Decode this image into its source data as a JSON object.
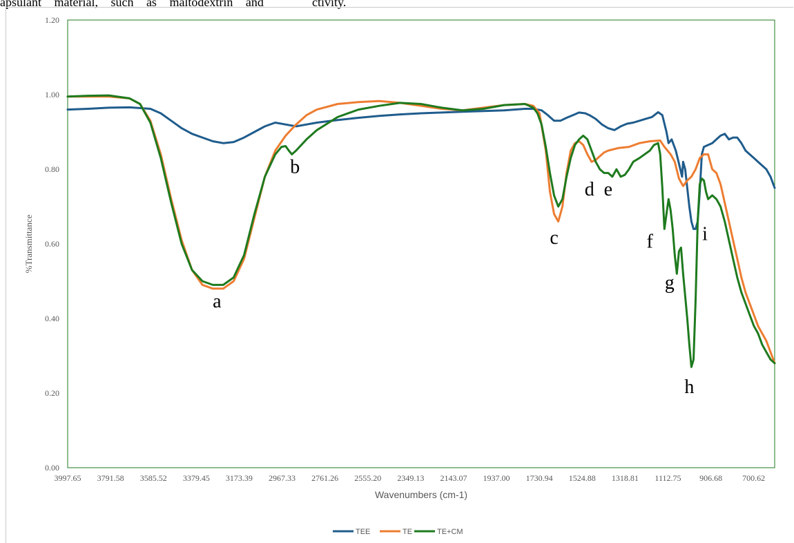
{
  "header_text": {
    "left": "apsulant material, such as maltodextrin and",
    "right": "ctivity."
  },
  "chart_data": {
    "type": "line",
    "title": "",
    "xlabel": "Wavenumbers (cm-1)",
    "ylabel": "%Transmittance",
    "x_reversed": true,
    "xlim": [
      3997.65,
      600.0
    ],
    "ylim": [
      0.0,
      1.2
    ],
    "y_ticks": [
      "0.00",
      "0.20",
      "0.40",
      "0.60",
      "0.80",
      "1.00",
      "1.20"
    ],
    "x_ticks": [
      {
        "value": 3997.65,
        "label": "3997.65"
      },
      {
        "value": 3791.58,
        "label": "3791.58"
      },
      {
        "value": 3585.52,
        "label": "3585.52"
      },
      {
        "value": 3379.45,
        "label": "3379.45"
      },
      {
        "value": 3173.39,
        "label": "3173.39"
      },
      {
        "value": 2967.33,
        "label": "2967.33"
      },
      {
        "value": 2761.26,
        "label": "2761.26"
      },
      {
        "value": 2555.2,
        "label": "2555.20"
      },
      {
        "value": 2349.13,
        "label": "2349.13"
      },
      {
        "value": 2143.07,
        "label": "2143.07"
      },
      {
        "value": 1937.0,
        "label": "1937.00"
      },
      {
        "value": 1730.94,
        "label": "1730.94"
      },
      {
        "value": 1524.88,
        "label": "1524.88"
      },
      {
        "value": 1318.81,
        "label": "1318.81"
      },
      {
        "value": 1112.75,
        "label": "1112.75"
      },
      {
        "value": 906.68,
        "label": "906.68"
      },
      {
        "value": 700.62,
        "label": "700.62"
      }
    ],
    "grid": false,
    "legend_position": "bottom",
    "series": [
      {
        "name": "TEE",
        "color": "#1f5c8c",
        "x": [
          3997.65,
          3900,
          3800,
          3700,
          3600,
          3550,
          3500,
          3450,
          3400,
          3350,
          3300,
          3250,
          3200,
          3150,
          3100,
          3050,
          3000,
          2950,
          2900,
          2850,
          2800,
          2700,
          2600,
          2500,
          2400,
          2300,
          2200,
          2100,
          2000,
          1900,
          1800,
          1760,
          1720,
          1690,
          1660,
          1630,
          1600,
          1570,
          1540,
          1510,
          1490,
          1460,
          1430,
          1400,
          1370,
          1340,
          1310,
          1280,
          1250,
          1220,
          1190,
          1160,
          1140,
          1120,
          1110,
          1095,
          1085,
          1075,
          1060,
          1045,
          1040,
          1030,
          1020,
          1010,
          1000,
          990,
          980,
          970,
          960,
          950,
          940,
          920,
          900,
          880,
          860,
          840,
          820,
          800,
          780,
          760,
          740,
          720,
          700,
          680,
          660,
          640,
          620,
          600
        ],
        "y": [
          0.96,
          0.962,
          0.965,
          0.966,
          0.962,
          0.95,
          0.93,
          0.91,
          0.895,
          0.885,
          0.875,
          0.87,
          0.873,
          0.885,
          0.9,
          0.915,
          0.925,
          0.92,
          0.915,
          0.92,
          0.925,
          0.932,
          0.938,
          0.943,
          0.947,
          0.95,
          0.952,
          0.954,
          0.956,
          0.958,
          0.962,
          0.962,
          0.958,
          0.945,
          0.93,
          0.93,
          0.938,
          0.945,
          0.952,
          0.95,
          0.945,
          0.935,
          0.92,
          0.91,
          0.905,
          0.915,
          0.922,
          0.925,
          0.93,
          0.935,
          0.94,
          0.953,
          0.945,
          0.9,
          0.87,
          0.88,
          0.865,
          0.85,
          0.815,
          0.78,
          0.82,
          0.8,
          0.75,
          0.7,
          0.66,
          0.64,
          0.64,
          0.66,
          0.74,
          0.84,
          0.86,
          0.865,
          0.87,
          0.88,
          0.89,
          0.895,
          0.88,
          0.885,
          0.885,
          0.87,
          0.85,
          0.84,
          0.83,
          0.82,
          0.81,
          0.8,
          0.78,
          0.75
        ]
      },
      {
        "name": "TE",
        "color": "#ed7d31",
        "x": [
          3997.65,
          3900,
          3800,
          3700,
          3650,
          3600,
          3550,
          3500,
          3450,
          3400,
          3350,
          3300,
          3250,
          3200,
          3150,
          3100,
          3050,
          3000,
          2950,
          2900,
          2850,
          2800,
          2700,
          2600,
          2500,
          2400,
          2300,
          2200,
          2100,
          2000,
          1900,
          1800,
          1760,
          1730,
          1700,
          1680,
          1660,
          1640,
          1620,
          1600,
          1580,
          1560,
          1540,
          1520,
          1500,
          1480,
          1460,
          1440,
          1420,
          1400,
          1350,
          1300,
          1250,
          1200,
          1150,
          1130,
          1100,
          1080,
          1060,
          1040,
          1020,
          1000,
          980,
          960,
          940,
          920,
          900,
          880,
          860,
          840,
          820,
          800,
          780,
          760,
          740,
          720,
          700,
          680,
          660,
          640,
          620,
          600
        ],
        "y": [
          0.995,
          0.995,
          0.995,
          0.99,
          0.975,
          0.93,
          0.84,
          0.72,
          0.61,
          0.53,
          0.49,
          0.48,
          0.48,
          0.5,
          0.56,
          0.67,
          0.78,
          0.85,
          0.89,
          0.92,
          0.945,
          0.96,
          0.975,
          0.98,
          0.983,
          0.978,
          0.97,
          0.962,
          0.958,
          0.965,
          0.972,
          0.975,
          0.97,
          0.95,
          0.85,
          0.74,
          0.68,
          0.66,
          0.7,
          0.79,
          0.85,
          0.87,
          0.875,
          0.865,
          0.84,
          0.82,
          0.825,
          0.835,
          0.845,
          0.85,
          0.857,
          0.86,
          0.87,
          0.875,
          0.877,
          0.86,
          0.84,
          0.82,
          0.775,
          0.755,
          0.77,
          0.78,
          0.8,
          0.83,
          0.84,
          0.84,
          0.8,
          0.79,
          0.76,
          0.71,
          0.66,
          0.61,
          0.56,
          0.51,
          0.47,
          0.44,
          0.41,
          0.38,
          0.36,
          0.34,
          0.31,
          0.28
        ]
      },
      {
        "name": "TE+CM",
        "color": "#1e7a1e",
        "x": [
          3997.65,
          3900,
          3800,
          3700,
          3650,
          3600,
          3550,
          3500,
          3450,
          3400,
          3350,
          3300,
          3250,
          3200,
          3150,
          3100,
          3050,
          3000,
          2970,
          2950,
          2935,
          2920,
          2900,
          2850,
          2800,
          2700,
          2600,
          2500,
          2400,
          2300,
          2200,
          2100,
          2000,
          1900,
          1800,
          1760,
          1740,
          1720,
          1700,
          1680,
          1660,
          1640,
          1620,
          1600,
          1580,
          1560,
          1540,
          1520,
          1500,
          1480,
          1460,
          1440,
          1420,
          1400,
          1380,
          1360,
          1340,
          1320,
          1300,
          1280,
          1250,
          1200,
          1180,
          1160,
          1150,
          1140,
          1130,
          1120,
          1110,
          1100,
          1090,
          1080,
          1070,
          1060,
          1050,
          1040,
          1030,
          1020,
          1010,
          1000,
          990,
          980,
          970,
          960,
          950,
          940,
          930,
          920,
          910,
          900,
          880,
          860,
          840,
          820,
          800,
          780,
          760,
          740,
          720,
          700,
          680,
          660,
          640,
          620,
          600
        ],
        "y": [
          0.995,
          0.997,
          0.998,
          0.99,
          0.975,
          0.925,
          0.83,
          0.71,
          0.6,
          0.53,
          0.5,
          0.49,
          0.49,
          0.51,
          0.57,
          0.68,
          0.78,
          0.84,
          0.86,
          0.862,
          0.85,
          0.84,
          0.85,
          0.88,
          0.905,
          0.94,
          0.96,
          0.97,
          0.978,
          0.975,
          0.965,
          0.958,
          0.962,
          0.972,
          0.975,
          0.965,
          0.95,
          0.92,
          0.86,
          0.79,
          0.73,
          0.7,
          0.72,
          0.78,
          0.83,
          0.865,
          0.88,
          0.89,
          0.88,
          0.85,
          0.82,
          0.8,
          0.79,
          0.79,
          0.78,
          0.8,
          0.78,
          0.785,
          0.8,
          0.82,
          0.83,
          0.85,
          0.865,
          0.87,
          0.84,
          0.75,
          0.64,
          0.68,
          0.72,
          0.69,
          0.64,
          0.57,
          0.52,
          0.58,
          0.59,
          0.52,
          0.46,
          0.4,
          0.33,
          0.27,
          0.29,
          0.45,
          0.66,
          0.76,
          0.775,
          0.77,
          0.74,
          0.72,
          0.725,
          0.73,
          0.72,
          0.7,
          0.66,
          0.61,
          0.56,
          0.51,
          0.47,
          0.44,
          0.41,
          0.38,
          0.36,
          0.33,
          0.31,
          0.29,
          0.28
        ]
      }
    ],
    "annotations": [
      {
        "text": "a",
        "x": 3280,
        "y": 0.43
      },
      {
        "text": "b",
        "x": 2905,
        "y": 0.79
      },
      {
        "text": "c",
        "x": 1660,
        "y": 0.6
      },
      {
        "text": "d",
        "x": 1490,
        "y": 0.73
      },
      {
        "text": "e",
        "x": 1400,
        "y": 0.73
      },
      {
        "text": "f",
        "x": 1200,
        "y": 0.59
      },
      {
        "text": "g",
        "x": 1105,
        "y": 0.48
      },
      {
        "text": "h",
        "x": 1010,
        "y": 0.2
      },
      {
        "text": "i",
        "x": 935,
        "y": 0.61
      }
    ]
  }
}
